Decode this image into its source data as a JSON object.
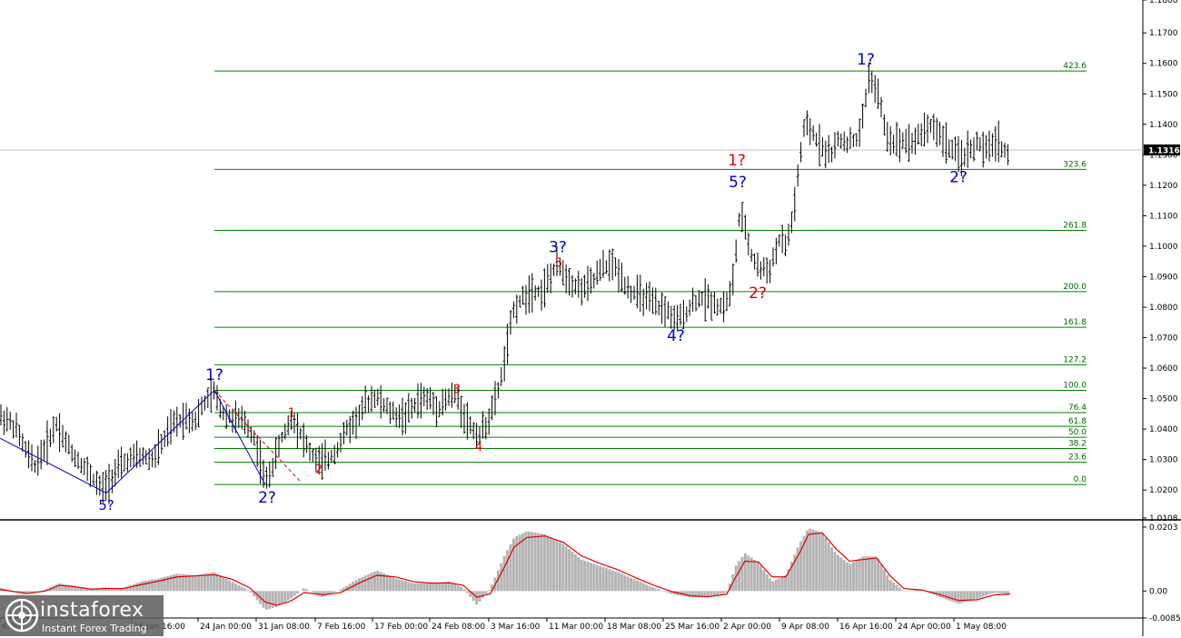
{
  "chart_data": [
    {
      "type": "line",
      "ylim": [
        1.0108,
        1.1808
      ],
      "y_ticks": [
        "1.1808",
        "1.1700",
        "1.1600",
        "1.1500",
        "1.1400",
        "1.1300",
        "1.1200",
        "1.1100",
        "1.1000",
        "1.0900",
        "1.0800",
        "1.0700",
        "1.0600",
        "1.0500",
        "1.0400",
        "1.0300",
        "1.0200",
        "1.0108"
      ],
      "x_ticks": [
        "6:00",
        "16 Jan 16:00",
        "24 Jan 00:00",
        "31 Jan 08:00",
        "7 Feb 16:00",
        "17 Feb 00:00",
        "24 Feb 08:00",
        "3 Mar 16:00",
        "11 Mar 00:00",
        "18 Mar 08:00",
        "25 Mar 16:00",
        "2 Apr 00:00",
        "9 Apr 08:00",
        "16 Apr 16:00",
        "24 Apr 00:00",
        "1 May 08:00"
      ],
      "current_price": "1.1316",
      "price_path": [
        [
          0,
          1.044
        ],
        [
          8,
          1.043
        ],
        [
          18,
          1.04
        ],
        [
          28,
          1.033
        ],
        [
          38,
          1.028
        ],
        [
          50,
          1.034
        ],
        [
          62,
          1.042
        ],
        [
          72,
          1.036
        ],
        [
          82,
          1.031
        ],
        [
          92,
          1.028
        ],
        [
          102,
          1.024
        ],
        [
          112,
          1.02
        ],
        [
          120,
          1.023
        ],
        [
          130,
          1.027
        ],
        [
          142,
          1.03
        ],
        [
          155,
          1.031
        ],
        [
          168,
          1.03
        ],
        [
          180,
          1.036
        ],
        [
          192,
          1.042
        ],
        [
          205,
          1.044
        ],
        [
          215,
          1.043
        ],
        [
          226,
          1.049
        ],
        [
          236,
          1.052
        ],
        [
          244,
          1.046
        ],
        [
          252,
          1.044
        ],
        [
          262,
          1.043
        ],
        [
          270,
          1.042
        ],
        [
          280,
          1.037
        ],
        [
          288,
          1.028
        ],
        [
          292,
          1.022
        ],
        [
          300,
          1.028
        ],
        [
          310,
          1.037
        ],
        [
          322,
          1.044
        ],
        [
          332,
          1.038
        ],
        [
          342,
          1.032
        ],
        [
          352,
          1.029
        ],
        [
          362,
          1.03
        ],
        [
          372,
          1.034
        ],
        [
          382,
          1.04
        ],
        [
          392,
          1.043
        ],
        [
          402,
          1.048
        ],
        [
          412,
          1.051
        ],
        [
          422,
          1.048
        ],
        [
          432,
          1.045
        ],
        [
          442,
          1.044
        ],
        [
          452,
          1.046
        ],
        [
          462,
          1.05
        ],
        [
          472,
          1.05
        ],
        [
          482,
          1.047
        ],
        [
          492,
          1.05
        ],
        [
          502,
          1.051
        ],
        [
          512,
          1.044
        ],
        [
          520,
          1.04
        ],
        [
          528,
          1.038
        ],
        [
          536,
          1.042
        ],
        [
          544,
          1.048
        ],
        [
          552,
          1.057
        ],
        [
          560,
          1.07
        ],
        [
          566,
          1.08
        ],
        [
          576,
          1.083
        ],
        [
          586,
          1.086
        ],
        [
          596,
          1.085
        ],
        [
          606,
          1.09
        ],
        [
          614,
          1.094
        ],
        [
          624,
          1.09
        ],
        [
          634,
          1.087
        ],
        [
          644,
          1.086
        ],
        [
          654,
          1.089
        ],
        [
          664,
          1.093
        ],
        [
          674,
          1.094
        ],
        [
          684,
          1.09
        ],
        [
          694,
          1.085
        ],
        [
          704,
          1.084
        ],
        [
          714,
          1.082
        ],
        [
          724,
          1.08
        ],
        [
          734,
          1.079
        ],
        [
          744,
          1.075
        ],
        [
          754,
          1.078
        ],
        [
          764,
          1.082
        ],
        [
          774,
          1.083
        ],
        [
          784,
          1.082
        ],
        [
          794,
          1.08
        ],
        [
          802,
          1.082
        ],
        [
          808,
          1.091
        ],
        [
          814,
          1.11
        ],
        [
          820,
          1.106
        ],
        [
          828,
          1.096
        ],
        [
          838,
          1.092
        ],
        [
          848,
          1.093
        ],
        [
          858,
          1.102
        ],
        [
          866,
          1.1
        ],
        [
          874,
          1.112
        ],
        [
          880,
          1.127
        ],
        [
          886,
          1.14
        ],
        [
          894,
          1.137
        ],
        [
          904,
          1.133
        ],
        [
          914,
          1.13
        ],
        [
          924,
          1.135
        ],
        [
          934,
          1.134
        ],
        [
          944,
          1.135
        ],
        [
          950,
          1.142
        ],
        [
          956,
          1.156
        ],
        [
          962,
          1.153
        ],
        [
          968,
          1.148
        ],
        [
          976,
          1.136
        ],
        [
          986,
          1.134
        ],
        [
          996,
          1.135
        ],
        [
          1006,
          1.134
        ],
        [
          1016,
          1.138
        ],
        [
          1026,
          1.14
        ],
        [
          1036,
          1.136
        ],
        [
          1046,
          1.132
        ],
        [
          1056,
          1.129
        ],
        [
          1066,
          1.131
        ],
        [
          1076,
          1.134
        ],
        [
          1086,
          1.131
        ],
        [
          1096,
          1.135
        ],
        [
          1104,
          1.132
        ],
        [
          1112,
          1.129
        ]
      ],
      "fib_levels": [
        {
          "label": "0.0",
          "price": 1.0218
        },
        {
          "label": "23.6",
          "price": 1.0291
        },
        {
          "label": "38.2",
          "price": 1.0336
        },
        {
          "label": "50.0",
          "price": 1.0373
        },
        {
          "label": "61.8",
          "price": 1.0409
        },
        {
          "label": "76.4",
          "price": 1.0454
        },
        {
          "label": "100.0",
          "price": 1.0527
        },
        {
          "label": "127.2",
          "price": 1.0611
        },
        {
          "label": "161.8",
          "price": 1.0734
        },
        {
          "label": "200.0",
          "price": 1.0851
        },
        {
          "label": "261.8",
          "price": 1.1052
        },
        {
          "label": "323.6",
          "price": 1.1252
        },
        {
          "label": "423.6",
          "price": 1.1575
        }
      ],
      "wave_labels": [
        {
          "text": "1?",
          "x": 236,
          "price": 1.0562,
          "color": "#0000cc",
          "size": 17
        },
        {
          "text": "2?",
          "x": 294,
          "price": 1.0158,
          "color": "#0000cc",
          "size": 17
        },
        {
          "text": "5?",
          "x": 117,
          "price": 1.0135,
          "color": "#0000cc",
          "size": 15
        },
        {
          "text": "3?",
          "x": 614,
          "price": 1.0981,
          "color": "#0000cc",
          "size": 17
        },
        {
          "text": "4?",
          "x": 744,
          "price": 1.069,
          "color": "#0000cc",
          "size": 17
        },
        {
          "text": "5?",
          "x": 812,
          "price": 1.1194,
          "color": "#0000cc",
          "size": 17
        },
        {
          "text": "1?",
          "x": 953,
          "price": 1.1596,
          "color": "#0000cc",
          "size": 17
        },
        {
          "text": "2?",
          "x": 1055,
          "price": 1.121,
          "color": "#0000cc",
          "size": 17
        },
        {
          "text": "1?",
          "x": 811,
          "price": 1.1265,
          "color": "#e00000",
          "size": 17
        },
        {
          "text": "2?",
          "x": 834,
          "price": 1.083,
          "color": "#e00000",
          "size": 17
        },
        {
          "text": "1",
          "x": 321,
          "price": 1.044,
          "color": "#e00000",
          "size": 13
        },
        {
          "text": "2",
          "x": 351,
          "price": 1.0255,
          "color": "#e00000",
          "size": 13
        },
        {
          "text": "3",
          "x": 503,
          "price": 1.0518,
          "color": "#e00000",
          "size": 13
        },
        {
          "text": "4",
          "x": 527,
          "price": 1.0328,
          "color": "#e00000",
          "size": 13
        },
        {
          "text": "5",
          "x": 615,
          "price": 1.0932,
          "color": "#e00000",
          "size": 13
        }
      ],
      "wave_lines": [
        {
          "color": "#0000cc",
          "dash": "",
          "points": [
            [
              0,
              1.037
            ],
            [
              117,
              1.019
            ],
            [
              236,
              1.0527
            ],
            [
              292,
              1.0218
            ]
          ]
        },
        {
          "color": "#e00000",
          "dash": "4,3",
          "points": [
            [
              236,
              1.0527
            ],
            [
              330,
              1.023
            ]
          ]
        }
      ]
    },
    {
      "type": "area",
      "ylim": [
        -0.00857,
        0.0203
      ],
      "y_ticks": [
        "0.0203",
        "0.00",
        "-0.00857"
      ],
      "histogram": [
        [
          0,
          0.001
        ],
        [
          30,
          -0.001
        ],
        [
          50,
          0.0005
        ],
        [
          65,
          0.0025
        ],
        [
          80,
          0.0015
        ],
        [
          100,
          0.0005
        ],
        [
          115,
          0.0012
        ],
        [
          135,
          0.0008
        ],
        [
          155,
          0.003
        ],
        [
          175,
          0.004
        ],
        [
          195,
          0.0055
        ],
        [
          215,
          0.005
        ],
        [
          236,
          0.006
        ],
        [
          255,
          0.003
        ],
        [
          275,
          0.0
        ],
        [
          292,
          -0.006
        ],
        [
          305,
          -0.005
        ],
        [
          320,
          -0.0025
        ],
        [
          335,
          0.001
        ],
        [
          355,
          -0.002
        ],
        [
          375,
          0.0005
        ],
        [
          395,
          0.004
        ],
        [
          415,
          0.0065
        ],
        [
          435,
          0.004
        ],
        [
          455,
          0.0025
        ],
        [
          475,
          0.0025
        ],
        [
          495,
          0.003
        ],
        [
          510,
          0.001
        ],
        [
          525,
          -0.0045
        ],
        [
          540,
          0.001
        ],
        [
          555,
          0.011
        ],
        [
          566,
          0.017
        ],
        [
          580,
          0.019
        ],
        [
          600,
          0.018
        ],
        [
          620,
          0.015
        ],
        [
          640,
          0.01
        ],
        [
          660,
          0.008
        ],
        [
          680,
          0.006
        ],
        [
          700,
          0.0035
        ],
        [
          720,
          0.001
        ],
        [
          740,
          -0.001
        ],
        [
          760,
          -0.002
        ],
        [
          780,
          -0.002
        ],
        [
          800,
          -0.0005
        ],
        [
          810,
          0.008
        ],
        [
          820,
          0.012
        ],
        [
          835,
          0.009
        ],
        [
          850,
          0.003
        ],
        [
          865,
          0.005
        ],
        [
          880,
          0.015
        ],
        [
          890,
          0.02
        ],
        [
          905,
          0.0185
        ],
        [
          920,
          0.012
        ],
        [
          935,
          0.0085
        ],
        [
          950,
          0.011
        ],
        [
          965,
          0.011
        ],
        [
          980,
          0.0035
        ],
        [
          995,
          0.0
        ],
        [
          1015,
          0.0005
        ],
        [
          1035,
          -0.002
        ],
        [
          1055,
          -0.004
        ],
        [
          1075,
          -0.0025
        ],
        [
          1095,
          -0.0005
        ],
        [
          1112,
          -0.001
        ]
      ],
      "signal": [
        [
          0,
          0.0005
        ],
        [
          30,
          -0.0008
        ],
        [
          50,
          0.0
        ],
        [
          65,
          0.0018
        ],
        [
          80,
          0.0015
        ],
        [
          100,
          0.0006
        ],
        [
          115,
          0.0008
        ],
        [
          135,
          0.0008
        ],
        [
          155,
          0.002
        ],
        [
          175,
          0.0032
        ],
        [
          195,
          0.0045
        ],
        [
          215,
          0.0048
        ],
        [
          236,
          0.0052
        ],
        [
          255,
          0.0038
        ],
        [
          275,
          0.001
        ],
        [
          292,
          -0.0035
        ],
        [
          305,
          -0.0045
        ],
        [
          320,
          -0.0032
        ],
        [
          335,
          -0.0005
        ],
        [
          355,
          -0.0012
        ],
        [
          375,
          -0.0005
        ],
        [
          395,
          0.0025
        ],
        [
          415,
          0.005
        ],
        [
          435,
          0.0045
        ],
        [
          455,
          0.003
        ],
        [
          475,
          0.0025
        ],
        [
          495,
          0.0026
        ],
        [
          510,
          0.0018
        ],
        [
          525,
          -0.002
        ],
        [
          540,
          -0.0008
        ],
        [
          555,
          0.0075
        ],
        [
          566,
          0.014
        ],
        [
          580,
          0.017
        ],
        [
          600,
          0.0175
        ],
        [
          620,
          0.0155
        ],
        [
          640,
          0.0112
        ],
        [
          660,
          0.0088
        ],
        [
          680,
          0.0068
        ],
        [
          700,
          0.0042
        ],
        [
          720,
          0.0018
        ],
        [
          740,
          -0.0002
        ],
        [
          760,
          -0.0015
        ],
        [
          780,
          -0.0018
        ],
        [
          800,
          -0.001
        ],
        [
          810,
          0.0045
        ],
        [
          820,
          0.0095
        ],
        [
          835,
          0.0092
        ],
        [
          850,
          0.0045
        ],
        [
          865,
          0.0045
        ],
        [
          880,
          0.012
        ],
        [
          890,
          0.018
        ],
        [
          905,
          0.0185
        ],
        [
          920,
          0.0135
        ],
        [
          935,
          0.0095
        ],
        [
          950,
          0.01
        ],
        [
          965,
          0.0105
        ],
        [
          980,
          0.0048
        ],
        [
          995,
          0.0008
        ],
        [
          1015,
          0.0003
        ],
        [
          1035,
          -0.0012
        ],
        [
          1055,
          -0.003
        ],
        [
          1075,
          -0.0028
        ],
        [
          1095,
          -0.0012
        ],
        [
          1112,
          -0.001
        ]
      ]
    }
  ],
  "logo": {
    "name": "instaforex",
    "tagline": "Instant Forex Trading"
  }
}
